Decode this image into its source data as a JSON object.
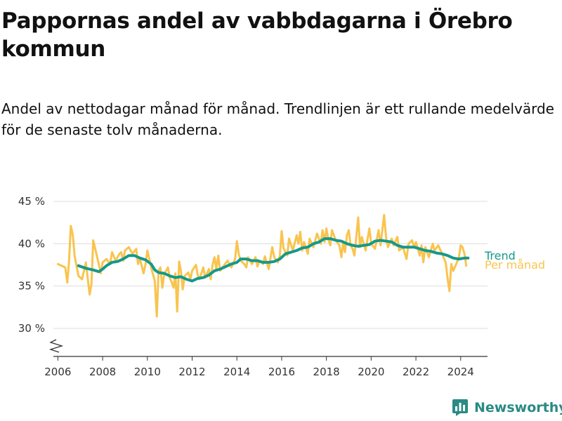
{
  "header": {
    "title": "Pappornas andel av vabbdagarna i Örebro kommun",
    "subtitle": "Andel av nettodagar månad för månad. Trendlinjen är ett rullande medelvärde för de senaste tolv månaderna."
  },
  "brand": {
    "name": "Newsworthy",
    "icon": "bar-chart-logo-icon",
    "color": "#2a8a84"
  },
  "colors": {
    "monthly": "#f9c44e",
    "trend": "#14998a",
    "grid": "#dddddd",
    "axis": "#333333"
  },
  "chart_data": {
    "type": "line",
    "xlabel": "",
    "ylabel": "",
    "ylim": [
      30,
      45
    ],
    "xlim": [
      2005.8,
      2025.2
    ],
    "y_ticks": [
      30,
      35,
      40,
      45
    ],
    "y_tick_labels": [
      "30 %",
      "35 %",
      "40 %",
      "45 %"
    ],
    "x_ticks": [
      2006,
      2008,
      2010,
      2012,
      2014,
      2016,
      2018,
      2020,
      2022,
      2024
    ],
    "x_tick_labels": [
      "2006",
      "2008",
      "2010",
      "2012",
      "2014",
      "2016",
      "2018",
      "2020",
      "2022",
      "2024"
    ],
    "grid": "horizontal",
    "axis_break": true,
    "series": [
      {
        "name": "Per månad",
        "color": "#f9c44e",
        "points": [
          [
            2006.0,
            37.6
          ],
          [
            2006.17,
            37.4
          ],
          [
            2006.33,
            37.2
          ],
          [
            2006.42,
            35.4
          ],
          [
            2006.5,
            38.0
          ],
          [
            2006.58,
            42.1
          ],
          [
            2006.67,
            41.0
          ],
          [
            2006.75,
            38.5
          ],
          [
            2006.92,
            36.2
          ],
          [
            2007.08,
            35.8
          ],
          [
            2007.25,
            37.8
          ],
          [
            2007.42,
            34.0
          ],
          [
            2007.5,
            35.2
          ],
          [
            2007.58,
            40.4
          ],
          [
            2007.75,
            38.5
          ],
          [
            2007.92,
            36.5
          ],
          [
            2008.0,
            37.8
          ],
          [
            2008.17,
            38.2
          ],
          [
            2008.33,
            37.6
          ],
          [
            2008.42,
            39.0
          ],
          [
            2008.58,
            38.0
          ],
          [
            2008.75,
            38.8
          ],
          [
            2008.83,
            39.0
          ],
          [
            2008.92,
            38.0
          ],
          [
            2009.0,
            39.2
          ],
          [
            2009.17,
            39.6
          ],
          [
            2009.33,
            38.8
          ],
          [
            2009.5,
            39.4
          ],
          [
            2009.58,
            37.6
          ],
          [
            2009.67,
            38.2
          ],
          [
            2009.83,
            36.5
          ],
          [
            2009.92,
            37.6
          ],
          [
            2010.0,
            39.2
          ],
          [
            2010.17,
            37.2
          ],
          [
            2010.25,
            36.4
          ],
          [
            2010.33,
            35.6
          ],
          [
            2010.42,
            31.4
          ],
          [
            2010.5,
            36.8
          ],
          [
            2010.58,
            37.2
          ],
          [
            2010.67,
            34.8
          ],
          [
            2010.75,
            36.4
          ],
          [
            2010.92,
            37.2
          ],
          [
            2011.0,
            36.0
          ],
          [
            2011.08,
            35.5
          ],
          [
            2011.17,
            34.8
          ],
          [
            2011.25,
            36.5
          ],
          [
            2011.33,
            32.0
          ],
          [
            2011.42,
            37.9
          ],
          [
            2011.5,
            36.8
          ],
          [
            2011.58,
            34.6
          ],
          [
            2011.67,
            36.2
          ],
          [
            2011.83,
            36.6
          ],
          [
            2011.92,
            35.8
          ],
          [
            2012.0,
            36.8
          ],
          [
            2012.17,
            37.5
          ],
          [
            2012.25,
            36.3
          ],
          [
            2012.33,
            35.8
          ],
          [
            2012.5,
            37.2
          ],
          [
            2012.58,
            36.0
          ],
          [
            2012.75,
            37.0
          ],
          [
            2012.83,
            35.8
          ],
          [
            2012.92,
            37.6
          ],
          [
            2013.0,
            38.4
          ],
          [
            2013.08,
            37.0
          ],
          [
            2013.17,
            38.6
          ],
          [
            2013.25,
            36.8
          ],
          [
            2013.42,
            37.4
          ],
          [
            2013.58,
            38.0
          ],
          [
            2013.75,
            37.2
          ],
          [
            2013.92,
            38.2
          ],
          [
            2014.0,
            40.3
          ],
          [
            2014.08,
            38.8
          ],
          [
            2014.17,
            38.0
          ],
          [
            2014.33,
            37.6
          ],
          [
            2014.42,
            37.2
          ],
          [
            2014.5,
            38.4
          ],
          [
            2014.67,
            37.6
          ],
          [
            2014.83,
            38.4
          ],
          [
            2014.92,
            37.3
          ],
          [
            2015.0,
            38.0
          ],
          [
            2015.17,
            37.6
          ],
          [
            2015.25,
            38.5
          ],
          [
            2015.42,
            37.0
          ],
          [
            2015.58,
            39.6
          ],
          [
            2015.67,
            38.4
          ],
          [
            2015.83,
            37.8
          ],
          [
            2015.92,
            38.6
          ],
          [
            2016.0,
            41.5
          ],
          [
            2016.08,
            39.5
          ],
          [
            2016.25,
            38.6
          ],
          [
            2016.33,
            40.6
          ],
          [
            2016.5,
            39.2
          ],
          [
            2016.67,
            41.0
          ],
          [
            2016.75,
            40.0
          ],
          [
            2016.83,
            41.4
          ],
          [
            2016.92,
            39.2
          ],
          [
            2017.0,
            40.2
          ],
          [
            2017.17,
            38.8
          ],
          [
            2017.25,
            40.6
          ],
          [
            2017.42,
            39.6
          ],
          [
            2017.58,
            41.2
          ],
          [
            2017.75,
            40.0
          ],
          [
            2017.83,
            41.6
          ],
          [
            2017.92,
            40.2
          ],
          [
            2018.0,
            41.8
          ],
          [
            2018.08,
            40.6
          ],
          [
            2018.17,
            39.8
          ],
          [
            2018.25,
            41.6
          ],
          [
            2018.42,
            40.4
          ],
          [
            2018.58,
            39.8
          ],
          [
            2018.67,
            38.4
          ],
          [
            2018.75,
            40.2
          ],
          [
            2018.83,
            39.0
          ],
          [
            2018.92,
            41.0
          ],
          [
            2019.0,
            41.6
          ],
          [
            2019.08,
            39.8
          ],
          [
            2019.17,
            39.4
          ],
          [
            2019.25,
            38.6
          ],
          [
            2019.42,
            43.1
          ],
          [
            2019.5,
            39.6
          ],
          [
            2019.58,
            40.8
          ],
          [
            2019.75,
            39.2
          ],
          [
            2019.92,
            41.8
          ],
          [
            2020.0,
            40.0
          ],
          [
            2020.17,
            39.4
          ],
          [
            2020.33,
            41.6
          ],
          [
            2020.42,
            39.8
          ],
          [
            2020.58,
            43.4
          ],
          [
            2020.67,
            40.6
          ],
          [
            2020.75,
            39.6
          ],
          [
            2020.92,
            40.6
          ],
          [
            2021.0,
            39.8
          ],
          [
            2021.17,
            40.8
          ],
          [
            2021.25,
            39.2
          ],
          [
            2021.42,
            39.6
          ],
          [
            2021.58,
            38.2
          ],
          [
            2021.67,
            40.0
          ],
          [
            2021.83,
            40.4
          ],
          [
            2021.92,
            39.6
          ],
          [
            2022.0,
            40.2
          ],
          [
            2022.17,
            38.6
          ],
          [
            2022.25,
            39.8
          ],
          [
            2022.33,
            37.8
          ],
          [
            2022.42,
            39.6
          ],
          [
            2022.58,
            38.4
          ],
          [
            2022.75,
            40.0
          ],
          [
            2022.83,
            39.2
          ],
          [
            2023.0,
            39.8
          ],
          [
            2023.17,
            38.8
          ],
          [
            2023.33,
            37.8
          ],
          [
            2023.42,
            35.8
          ],
          [
            2023.5,
            34.4
          ],
          [
            2023.58,
            37.6
          ],
          [
            2023.67,
            36.8
          ],
          [
            2023.83,
            37.8
          ],
          [
            2023.92,
            38.4
          ],
          [
            2024.0,
            39.8
          ],
          [
            2024.08,
            39.6
          ],
          [
            2024.17,
            38.8
          ],
          [
            2024.25,
            37.4
          ]
        ]
      },
      {
        "name": "Trend",
        "color": "#14998a",
        "points": [
          [
            2006.92,
            37.4
          ],
          [
            2007.25,
            37.1
          ],
          [
            2007.58,
            36.9
          ],
          [
            2007.83,
            36.7
          ],
          [
            2008.0,
            37.0
          ],
          [
            2008.17,
            37.4
          ],
          [
            2008.42,
            37.8
          ],
          [
            2008.67,
            37.9
          ],
          [
            2008.92,
            38.2
          ],
          [
            2009.17,
            38.6
          ],
          [
            2009.42,
            38.6
          ],
          [
            2009.67,
            38.3
          ],
          [
            2009.92,
            38.1
          ],
          [
            2010.17,
            37.6
          ],
          [
            2010.33,
            36.9
          ],
          [
            2010.5,
            36.6
          ],
          [
            2010.75,
            36.5
          ],
          [
            2011.0,
            36.2
          ],
          [
            2011.25,
            36.0
          ],
          [
            2011.5,
            36.1
          ],
          [
            2011.75,
            35.8
          ],
          [
            2012.0,
            35.6
          ],
          [
            2012.25,
            35.9
          ],
          [
            2012.5,
            36.0
          ],
          [
            2012.75,
            36.3
          ],
          [
            2013.0,
            36.8
          ],
          [
            2013.25,
            37.0
          ],
          [
            2013.5,
            37.3
          ],
          [
            2013.75,
            37.6
          ],
          [
            2014.0,
            37.8
          ],
          [
            2014.17,
            38.2
          ],
          [
            2014.42,
            38.2
          ],
          [
            2014.67,
            38.0
          ],
          [
            2014.92,
            38.0
          ],
          [
            2015.17,
            37.8
          ],
          [
            2015.42,
            37.8
          ],
          [
            2015.67,
            37.9
          ],
          [
            2015.92,
            38.2
          ],
          [
            2016.17,
            38.8
          ],
          [
            2016.42,
            39.0
          ],
          [
            2016.67,
            39.2
          ],
          [
            2016.92,
            39.5
          ],
          [
            2017.17,
            39.6
          ],
          [
            2017.42,
            40.0
          ],
          [
            2017.67,
            40.2
          ],
          [
            2017.92,
            40.6
          ],
          [
            2018.17,
            40.6
          ],
          [
            2018.42,
            40.4
          ],
          [
            2018.67,
            40.3
          ],
          [
            2018.92,
            40.0
          ],
          [
            2019.17,
            39.8
          ],
          [
            2019.42,
            39.7
          ],
          [
            2019.67,
            39.8
          ],
          [
            2019.92,
            39.9
          ],
          [
            2020.17,
            40.3
          ],
          [
            2020.42,
            40.4
          ],
          [
            2020.67,
            40.3
          ],
          [
            2020.92,
            40.2
          ],
          [
            2021.17,
            39.8
          ],
          [
            2021.42,
            39.6
          ],
          [
            2021.67,
            39.6
          ],
          [
            2021.92,
            39.6
          ],
          [
            2022.17,
            39.4
          ],
          [
            2022.42,
            39.2
          ],
          [
            2022.67,
            39.1
          ],
          [
            2022.92,
            38.9
          ],
          [
            2023.17,
            38.8
          ],
          [
            2023.42,
            38.6
          ],
          [
            2023.67,
            38.3
          ],
          [
            2023.92,
            38.2
          ],
          [
            2024.17,
            38.3
          ],
          [
            2024.33,
            38.3
          ]
        ]
      }
    ]
  }
}
